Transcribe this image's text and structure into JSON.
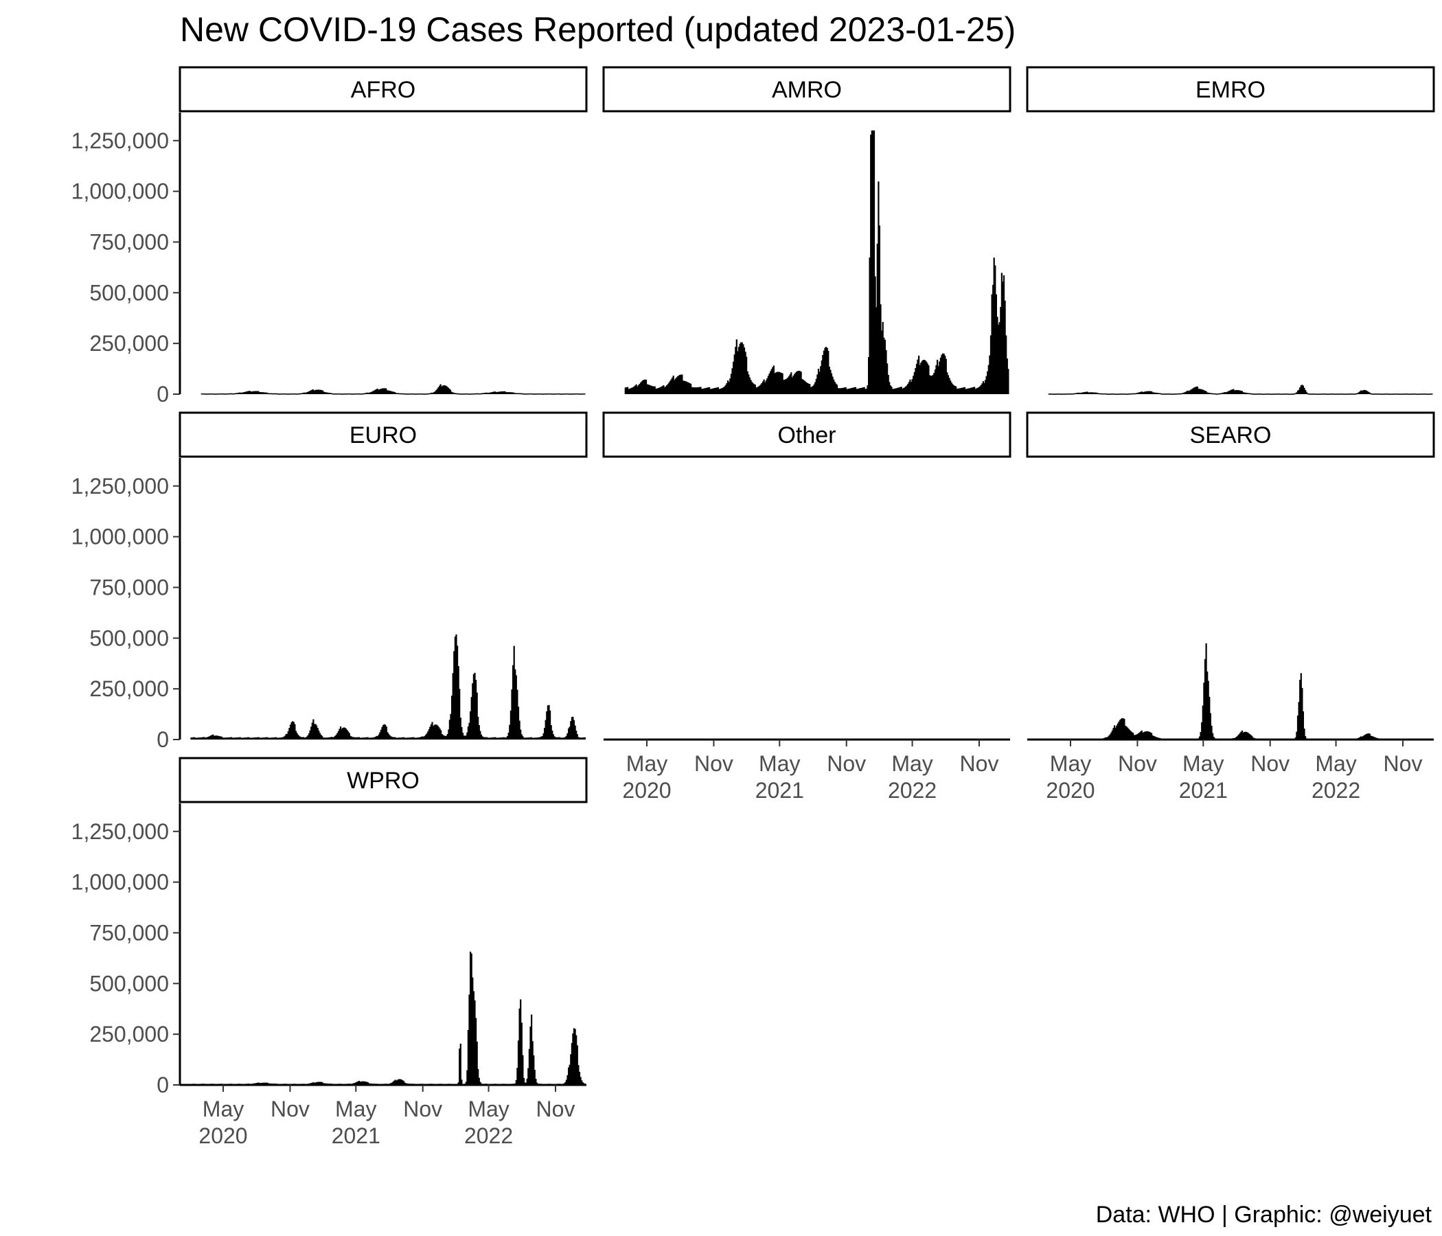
{
  "chart_data": {
    "type": "bar",
    "title": "New COVID-19 Cases Reported (updated 2023-01-25)",
    "caption": "Data: WHO | Graphic: @weiyuet",
    "xlabel": "",
    "ylabel": "",
    "ylim": [
      0,
      1300000
    ],
    "yticks": [
      0,
      250000,
      500000,
      750000,
      1000000,
      1250000
    ],
    "ytick_labels": [
      "0",
      "250,000",
      "500,000",
      "750,000",
      "1,000,000",
      "1,250,000"
    ],
    "x_range": [
      "2020-01-03",
      "2023-01-25"
    ],
    "xticks": [
      "2020-05-01",
      "2020-11-01",
      "2021-05-01",
      "2021-11-01",
      "2022-05-01",
      "2022-11-01"
    ],
    "xtick_labels": [
      "May\n2020",
      "Nov",
      "May\n2021",
      "Nov",
      "May\n2022",
      "Nov"
    ],
    "grid": false,
    "legend": "none",
    "colors": {
      "bars": "#000000",
      "axis": "#000000",
      "tick_text": "#4d4d4d",
      "background": "#ffffff"
    },
    "facets": [
      {
        "name": "AFRO",
        "peaks": [
          {
            "date": "2020-07-20",
            "value": 12000,
            "width": 55
          },
          {
            "date": "2021-01-10",
            "value": 20000,
            "width": 40
          },
          {
            "date": "2021-07-10",
            "value": 25000,
            "width": 45
          },
          {
            "date": "2021-12-25",
            "value": 45000,
            "width": 30
          },
          {
            "date": "2022-06-01",
            "value": 10000,
            "width": 60
          }
        ],
        "base": 3000,
        "start": "2020-03-01",
        "end": "2023-01-20"
      },
      {
        "name": "AMRO",
        "peaks": [
          {
            "date": "2020-04-20",
            "value": 35000,
            "width": 30
          },
          {
            "date": "2020-07-25",
            "value": 60000,
            "width": 45
          },
          {
            "date": "2021-01-10",
            "value": 240000,
            "width": 35
          },
          {
            "date": "2021-04-15",
            "value": 90000,
            "width": 45
          },
          {
            "date": "2021-06-15",
            "value": 80000,
            "width": 40
          },
          {
            "date": "2021-09-01",
            "value": 190000,
            "width": 30
          },
          {
            "date": "2022-01-12",
            "value": 1260000,
            "width": 9
          },
          {
            "date": "2022-01-26",
            "value": 1000000,
            "width": 8
          },
          {
            "date": "2022-01-05",
            "value": 900000,
            "width": 7
          },
          {
            "date": "2022-02-10",
            "value": 300000,
            "width": 15
          },
          {
            "date": "2022-05-25",
            "value": 150000,
            "width": 40
          },
          {
            "date": "2022-07-20",
            "value": 170000,
            "width": 30
          },
          {
            "date": "2022-12-20",
            "value": 280000,
            "width": 40
          },
          {
            "date": "2022-12-10",
            "value": 500000,
            "width": 10
          },
          {
            "date": "2023-01-05",
            "value": 450000,
            "width": 10
          }
        ],
        "base": 30000,
        "start": "2020-03-01",
        "end": "2023-01-20"
      },
      {
        "name": "EMRO",
        "peaks": [
          {
            "date": "2020-06-15",
            "value": 8000,
            "width": 45
          },
          {
            "date": "2020-11-25",
            "value": 12000,
            "width": 40
          },
          {
            "date": "2021-04-10",
            "value": 30000,
            "width": 40
          },
          {
            "date": "2021-07-25",
            "value": 20000,
            "width": 40
          },
          {
            "date": "2022-01-25",
            "value": 45000,
            "width": 15
          },
          {
            "date": "2022-07-15",
            "value": 20000,
            "width": 20
          }
        ],
        "base": 2500,
        "start": "2020-03-01",
        "end": "2023-01-20"
      },
      {
        "name": "EURO",
        "peaks": [
          {
            "date": "2020-04-05",
            "value": 12000,
            "width": 25
          },
          {
            "date": "2020-11-05",
            "value": 75000,
            "width": 20
          },
          {
            "date": "2021-01-05",
            "value": 80000,
            "width": 20
          },
          {
            "date": "2021-03-25",
            "value": 55000,
            "width": 25
          },
          {
            "date": "2021-07-15",
            "value": 60000,
            "width": 20
          },
          {
            "date": "2021-12-01",
            "value": 70000,
            "width": 30
          },
          {
            "date": "2022-01-28",
            "value": 500000,
            "width": 18
          },
          {
            "date": "2022-03-20",
            "value": 310000,
            "width": 18
          },
          {
            "date": "2022-07-10",
            "value": 400000,
            "width": 16
          },
          {
            "date": "2022-10-10",
            "value": 150000,
            "width": 15
          },
          {
            "date": "2022-12-15",
            "value": 110000,
            "width": 15
          }
        ],
        "base": 10000,
        "start": "2020-02-01",
        "end": "2023-01-20"
      },
      {
        "name": "Other",
        "peaks": [],
        "base": 1000,
        "start": "2020-02-15",
        "end": "2021-05-20"
      },
      {
        "name": "SEARO",
        "peaks": [
          {
            "date": "2020-09-15",
            "value": 95000,
            "width": 40
          },
          {
            "date": "2020-11-20",
            "value": 40000,
            "width": 40
          },
          {
            "date": "2021-05-08",
            "value": 410000,
            "width": 16
          },
          {
            "date": "2021-08-20",
            "value": 40000,
            "width": 30
          },
          {
            "date": "2022-01-22",
            "value": 350000,
            "width": 11
          },
          {
            "date": "2022-07-25",
            "value": 25000,
            "width": 30
          }
        ],
        "base": 3000,
        "start": "2020-03-01",
        "end": "2023-01-20"
      },
      {
        "name": "WPRO",
        "peaks": [
          {
            "date": "2020-08-15",
            "value": 6000,
            "width": 40
          },
          {
            "date": "2021-01-15",
            "value": 10000,
            "width": 30
          },
          {
            "date": "2021-05-15",
            "value": 14000,
            "width": 30
          },
          {
            "date": "2021-08-25",
            "value": 25000,
            "width": 25
          },
          {
            "date": "2022-03-10",
            "value": 620000,
            "width": 9
          },
          {
            "date": "2022-03-20",
            "value": 400000,
            "width": 14
          },
          {
            "date": "2022-02-10",
            "value": 270000,
            "width": 4
          },
          {
            "date": "2022-07-25",
            "value": 400000,
            "width": 10
          },
          {
            "date": "2022-08-25",
            "value": 300000,
            "width": 12
          },
          {
            "date": "2022-12-20",
            "value": 270000,
            "width": 20
          }
        ],
        "base": 5000,
        "start": "2020-02-01",
        "end": "2023-01-20"
      }
    ]
  }
}
